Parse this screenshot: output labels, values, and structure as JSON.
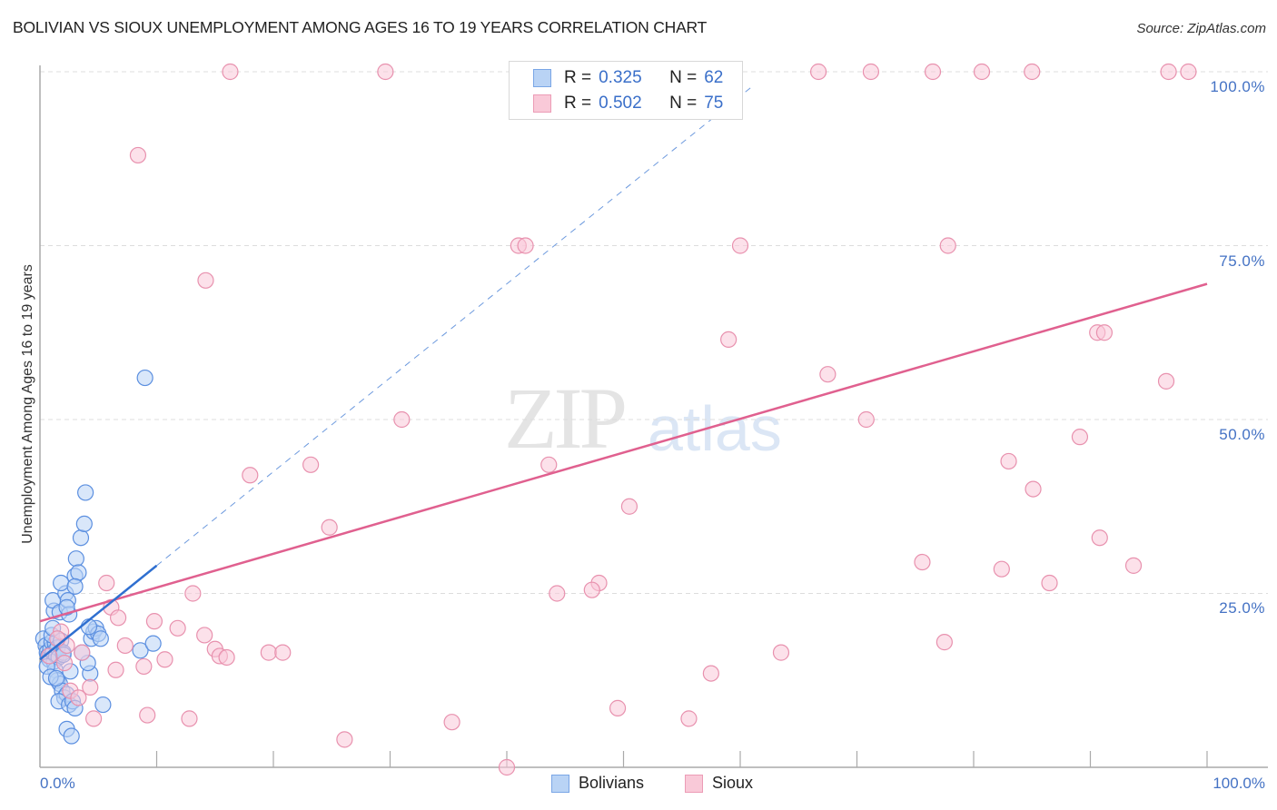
{
  "header": {
    "title": "BOLIVIAN VS SIOUX UNEMPLOYMENT AMONG AGES 16 TO 19 YEARS CORRELATION CHART",
    "source": "Source: ZipAtlas.com"
  },
  "watermark": {
    "zip": "ZIP",
    "atlas": "atlas"
  },
  "axes": {
    "ylabel": "Unemployment Among Ages 16 to 19 years",
    "y_ticks": [
      "100.0%",
      "75.0%",
      "50.0%",
      "25.0%"
    ],
    "x_ticks": [
      "0.0%",
      "100.0%"
    ]
  },
  "legend_top": {
    "rows": [
      {
        "r_label": "R =",
        "r_value": "0.325",
        "n_label": "N =",
        "n_value": "62"
      },
      {
        "r_label": "R =",
        "r_value": "0.502",
        "n_label": "N =",
        "n_value": "75"
      }
    ]
  },
  "legend_bottom": {
    "items": [
      {
        "label": "Bolivians"
      },
      {
        "label": "Sioux"
      }
    ]
  },
  "colors": {
    "bolivians_fill": "#b9d3f5",
    "bolivians_stroke": "#5b8fe0",
    "bolivians_line": "#2f6fd0",
    "sioux_fill": "#f9c9d8",
    "sioux_stroke": "#e891ae",
    "sioux_line": "#e0608f",
    "tick_text": "#4472c4",
    "grid": "#dddddd"
  },
  "chart_data": {
    "type": "scatter",
    "title": "BOLIVIAN VS SIOUX UNEMPLOYMENT AMONG AGES 16 TO 19 YEARS CORRELATION CHART",
    "xlabel": "",
    "ylabel": "Unemployment Among Ages 16 to 19 years",
    "xlim": [
      0,
      100
    ],
    "ylim": [
      0,
      100
    ],
    "x_ticks": [
      0,
      10,
      20,
      30,
      40,
      50,
      60,
      70,
      80,
      90,
      100
    ],
    "y_ticks": [
      25,
      50,
      75,
      100
    ],
    "grid": true,
    "legend_position": "top-center",
    "series": [
      {
        "name": "Bolivians",
        "R": 0.325,
        "N": 62,
        "trend": {
          "x0": 0,
          "y0": 15.5,
          "x1": 10,
          "y1": 29.0,
          "dashed_extension_to": [
            61,
            100
          ]
        },
        "points": [
          [
            0.3,
            18.5
          ],
          [
            0.5,
            17.5
          ],
          [
            0.6,
            16.5
          ],
          [
            0.7,
            16
          ],
          [
            0.8,
            15.5
          ],
          [
            0.9,
            17
          ],
          [
            1.0,
            18
          ],
          [
            1.1,
            16.5
          ],
          [
            1.2,
            15.2
          ],
          [
            1.3,
            17.8
          ],
          [
            1.0,
            19
          ],
          [
            1.4,
            16
          ],
          [
            1.5,
            17.2
          ],
          [
            1.6,
            15.8
          ],
          [
            1.8,
            18.2
          ],
          [
            2.0,
            16.5
          ],
          [
            1.2,
            22.5
          ],
          [
            1.1,
            24
          ],
          [
            1.7,
            22.3
          ],
          [
            2.2,
            25
          ],
          [
            1.8,
            26.5
          ],
          [
            2.4,
            24
          ],
          [
            2.5,
            22
          ],
          [
            2.3,
            23
          ],
          [
            3.0,
            27.5
          ],
          [
            3.1,
            30
          ],
          [
            3.3,
            28
          ],
          [
            3.0,
            26
          ],
          [
            3.5,
            33
          ],
          [
            3.8,
            35
          ],
          [
            3.9,
            39.5
          ],
          [
            1.3,
            14
          ],
          [
            1.5,
            12.5
          ],
          [
            1.7,
            12
          ],
          [
            1.9,
            11
          ],
          [
            2.1,
            10
          ],
          [
            2.3,
            10.5
          ],
          [
            1.6,
            9.5
          ],
          [
            2.5,
            9
          ],
          [
            2.8,
            9.5
          ],
          [
            3.0,
            8.5
          ],
          [
            2.3,
            5.5
          ],
          [
            2.7,
            4.5
          ],
          [
            5.4,
            9
          ],
          [
            4.3,
            13.5
          ],
          [
            4.1,
            15
          ],
          [
            4.4,
            18.5
          ],
          [
            4.6,
            19.5
          ],
          [
            4.8,
            20
          ],
          [
            5.0,
            19.2
          ],
          [
            5.2,
            18.5
          ],
          [
            4.2,
            20.2
          ],
          [
            8.6,
            16.8
          ],
          [
            9.7,
            17.8
          ],
          [
            9.0,
            56
          ],
          [
            0.6,
            14.5
          ],
          [
            0.9,
            13
          ],
          [
            1.4,
            12.8
          ],
          [
            2.0,
            16.2
          ],
          [
            2.6,
            13.8
          ],
          [
            3.6,
            16.5
          ],
          [
            1.1,
            20
          ]
        ]
      },
      {
        "name": "Sioux",
        "R": 0.502,
        "N": 75,
        "trend": {
          "x0": 0,
          "y0": 21.0,
          "x1": 100,
          "y1": 69.5
        },
        "points": [
          [
            16.3,
            100
          ],
          [
            29.6,
            100
          ],
          [
            50.0,
            100
          ],
          [
            66.7,
            100
          ],
          [
            71.2,
            100
          ],
          [
            76.5,
            100
          ],
          [
            80.7,
            100
          ],
          [
            85.0,
            100
          ],
          [
            96.7,
            100
          ],
          [
            98.4,
            100
          ],
          [
            8.4,
            88
          ],
          [
            14.2,
            70
          ],
          [
            41.0,
            75
          ],
          [
            41.6,
            75
          ],
          [
            60.0,
            75
          ],
          [
            77.8,
            75
          ],
          [
            59.0,
            61.5
          ],
          [
            90.6,
            62.5
          ],
          [
            91.2,
            62.5
          ],
          [
            96.5,
            55.5
          ],
          [
            67.5,
            56.5
          ],
          [
            31.0,
            50
          ],
          [
            70.8,
            50
          ],
          [
            89.1,
            47.5
          ],
          [
            18.0,
            42
          ],
          [
            23.2,
            43.5
          ],
          [
            43.6,
            43.5
          ],
          [
            83.0,
            44
          ],
          [
            85.1,
            40
          ],
          [
            40.0,
            0
          ],
          [
            50.5,
            37.5
          ],
          [
            24.8,
            34.5
          ],
          [
            75.6,
            29.5
          ],
          [
            82.4,
            28.5
          ],
          [
            90.8,
            33
          ],
          [
            93.7,
            29
          ],
          [
            86.5,
            26.5
          ],
          [
            47.9,
            26.5
          ],
          [
            47.3,
            25.5
          ],
          [
            44.3,
            25
          ],
          [
            13.1,
            25
          ],
          [
            5.7,
            26.5
          ],
          [
            6.1,
            23
          ],
          [
            6.7,
            21.5
          ],
          [
            9.8,
            21
          ],
          [
            11.8,
            20
          ],
          [
            14.1,
            19
          ],
          [
            15.0,
            17
          ],
          [
            15.4,
            16
          ],
          [
            16.0,
            15.8
          ],
          [
            19.6,
            16.5
          ],
          [
            20.8,
            16.5
          ],
          [
            26.1,
            4.0
          ],
          [
            35.3,
            6.5
          ],
          [
            49.5,
            8.5
          ],
          [
            55.6,
            7
          ],
          [
            57.5,
            13.5
          ],
          [
            63.5,
            16.5
          ],
          [
            77.5,
            18
          ],
          [
            7.3,
            17.5
          ],
          [
            8.9,
            14.5
          ],
          [
            6.5,
            14
          ],
          [
            10.7,
            15.5
          ],
          [
            3.6,
            16.5
          ],
          [
            1.8,
            19.5
          ],
          [
            2.3,
            17.5
          ],
          [
            2.6,
            11
          ],
          [
            4.3,
            11.5
          ],
          [
            4.6,
            7
          ],
          [
            9.2,
            7.5
          ],
          [
            12.8,
            7
          ],
          [
            0.8,
            16
          ],
          [
            1.5,
            18.5
          ],
          [
            2.1,
            15
          ],
          [
            3.3,
            10
          ]
        ]
      }
    ]
  }
}
